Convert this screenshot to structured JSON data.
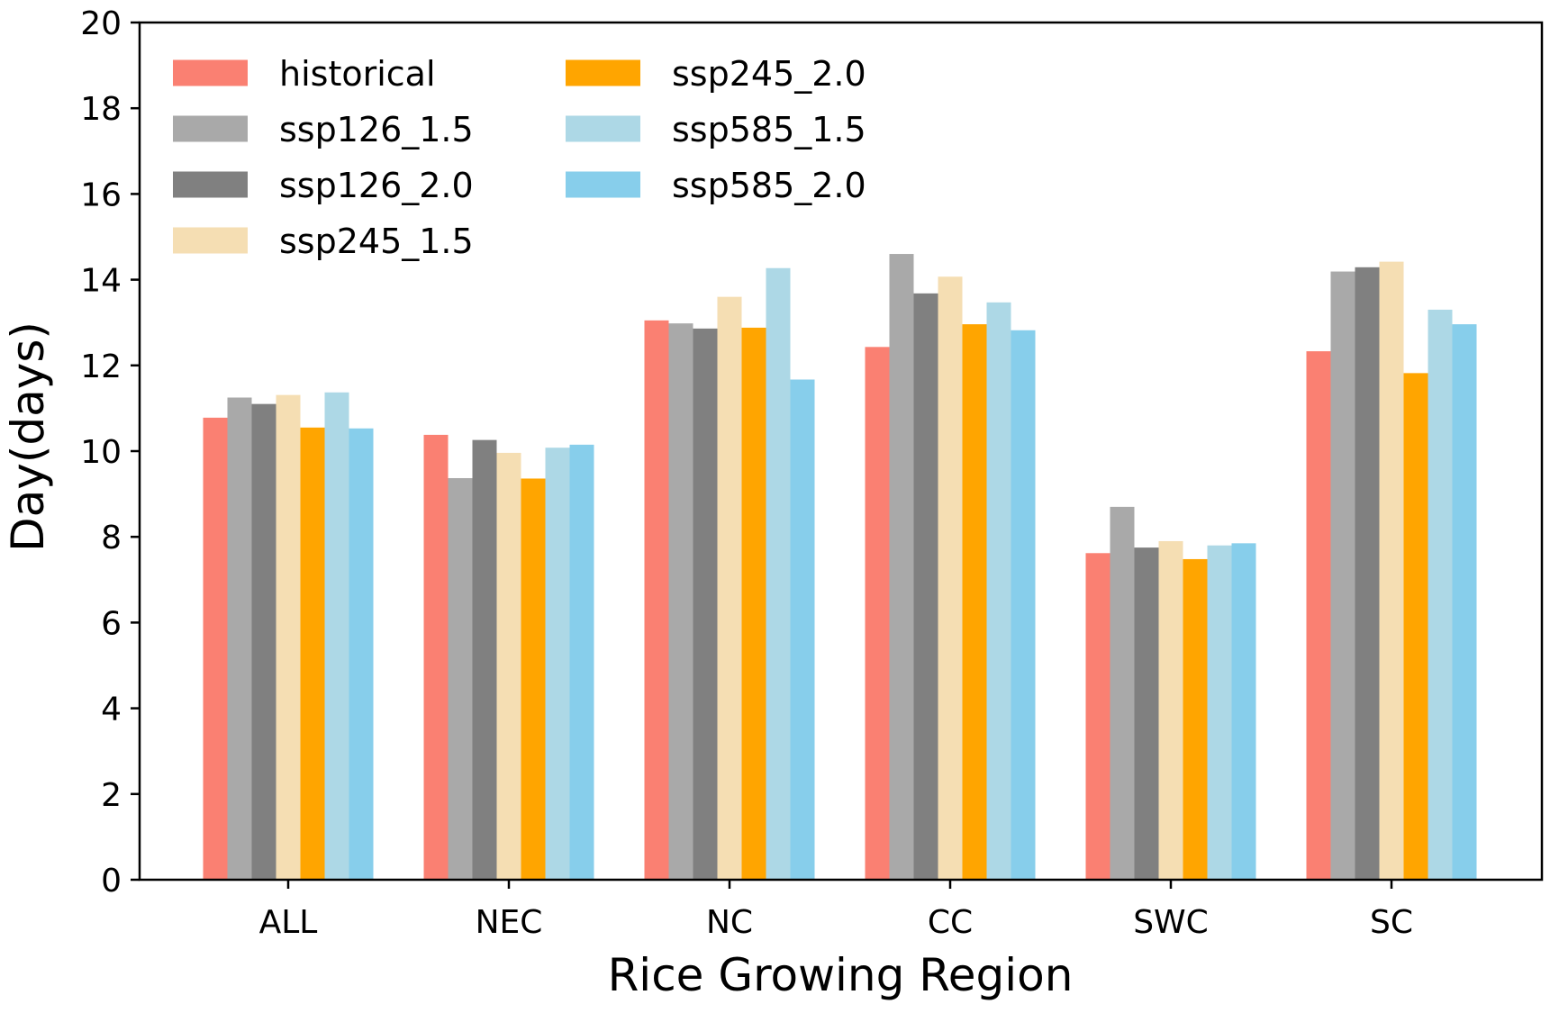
{
  "chart_data": {
    "type": "bar",
    "title": "",
    "xlabel": "Rice Growing Region",
    "ylabel": "Day(days)",
    "ylim": [
      0,
      20
    ],
    "yticks": [
      "0",
      "2",
      "4",
      "6",
      "8",
      "10",
      "12",
      "14",
      "16",
      "18",
      "20"
    ],
    "grid": false,
    "legend_position": "top-left",
    "categories": [
      "ALL",
      "NEC",
      "NC",
      "CC",
      "SWC",
      "SC"
    ],
    "series": [
      {
        "name": "historical",
        "color": "#FA8072",
        "values": [
          10.78,
          10.38,
          13.05,
          12.43,
          7.62,
          12.33
        ]
      },
      {
        "name": "ssp126_1.5",
        "color": "#A9A9A9",
        "values": [
          11.25,
          9.37,
          12.98,
          14.6,
          8.7,
          14.19
        ]
      },
      {
        "name": "ssp126_2.0",
        "color": "#808080",
        "values": [
          11.1,
          10.26,
          12.86,
          13.68,
          7.75,
          14.29
        ]
      },
      {
        "name": "ssp245_1.5",
        "color": "#F5DEB3",
        "values": [
          11.31,
          9.96,
          13.6,
          14.07,
          7.9,
          14.42
        ]
      },
      {
        "name": "ssp245_2.0",
        "color": "#FFA500",
        "values": [
          10.55,
          9.36,
          12.88,
          12.96,
          7.48,
          11.82
        ]
      },
      {
        "name": "ssp585_1.5",
        "color": "#ADD8E6",
        "values": [
          11.37,
          10.08,
          14.27,
          13.47,
          7.8,
          13.3
        ]
      },
      {
        "name": "ssp585_2.0",
        "color": "#87CEEB",
        "values": [
          10.53,
          10.15,
          11.67,
          12.82,
          7.85,
          12.96
        ]
      }
    ]
  }
}
